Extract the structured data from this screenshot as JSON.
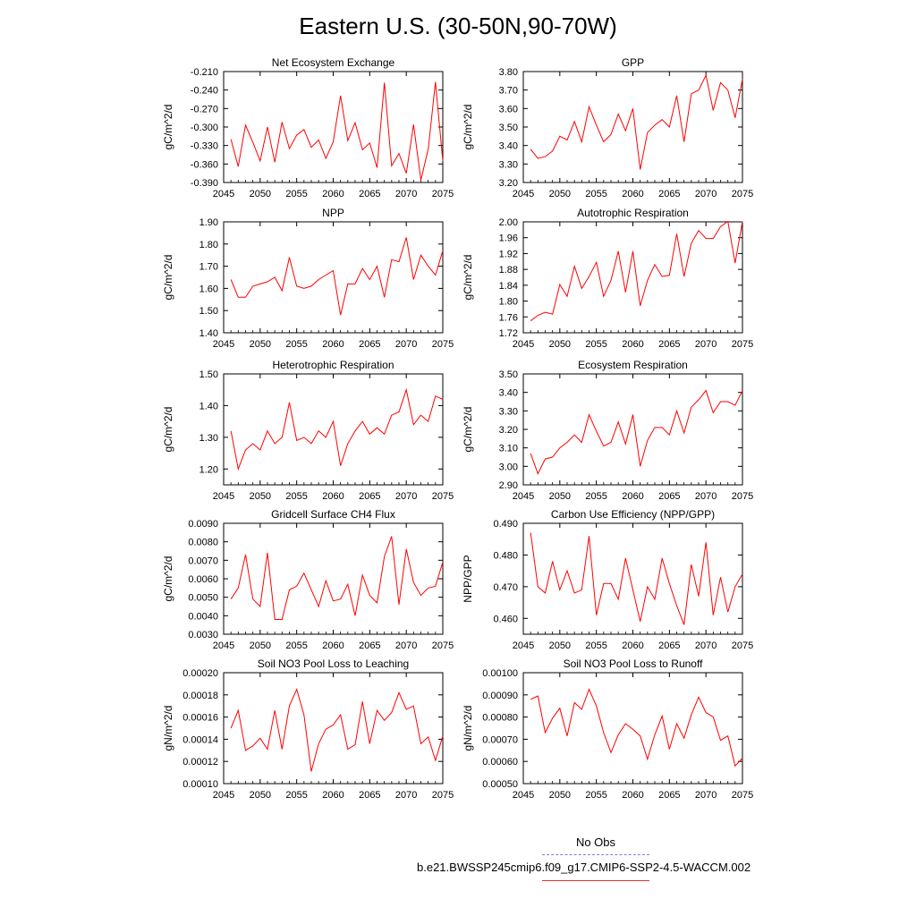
{
  "title": "Eastern U.S. (30-50N,90-70W)",
  "legend": {
    "entries": [
      {
        "label": "No Obs",
        "color": "#7b7bd6",
        "style": "dashed"
      },
      {
        "label": "b.e21.BWSSP245cmip6.f09_g17.CMIP6-SSP2-4.5-WACCM.002",
        "color": "#e03030",
        "style": "solid"
      }
    ]
  },
  "series_color": "#ff0000",
  "chart_data": [
    {
      "type": "line",
      "title": "Net Ecosystem Exchange",
      "ylabel": "gC/m^2/d",
      "xlabel": "",
      "xlim": [
        2045,
        2075
      ],
      "ylim": [
        -0.39,
        -0.21
      ],
      "xticks": [
        "2045",
        "2050",
        "2055",
        "2060",
        "2065",
        "2070",
        "2075"
      ],
      "yticks": [
        "-0.210",
        "-0.240",
        "-0.270",
        "-0.300",
        "-0.330",
        "-0.360",
        "-0.390"
      ],
      "x": [
        2046,
        2047,
        2048,
        2049,
        2050,
        2051,
        2052,
        2053,
        2054,
        2055,
        2056,
        2057,
        2058,
        2059,
        2060,
        2061,
        2062,
        2063,
        2064,
        2065,
        2066,
        2067,
        2068,
        2069,
        2070,
        2071,
        2072,
        2073,
        2074,
        2075
      ],
      "series": [
        {
          "values": [
            -0.32,
            -0.364,
            -0.297,
            -0.325,
            -0.355,
            -0.3,
            -0.357,
            -0.292,
            -0.335,
            -0.313,
            -0.304,
            -0.333,
            -0.321,
            -0.351,
            -0.324,
            -0.249,
            -0.322,
            -0.293,
            -0.337,
            -0.326,
            -0.366,
            -0.228,
            -0.363,
            -0.343,
            -0.375,
            -0.296,
            -0.386,
            -0.336,
            -0.227,
            -0.355
          ]
        }
      ]
    },
    {
      "type": "line",
      "title": "GPP",
      "ylabel": "gC/m^2/d",
      "xlabel": "",
      "xlim": [
        2045,
        2075
      ],
      "ylim": [
        3.2,
        3.8
      ],
      "xticks": [
        "2045",
        "2050",
        "2055",
        "2060",
        "2065",
        "2070",
        "2075"
      ],
      "yticks": [
        "3.80",
        "3.70",
        "3.60",
        "3.50",
        "3.40",
        "3.30",
        "3.20"
      ],
      "x": [
        2046,
        2047,
        2048,
        2049,
        2050,
        2051,
        2052,
        2053,
        2054,
        2055,
        2056,
        2057,
        2058,
        2059,
        2060,
        2061,
        2062,
        2063,
        2064,
        2065,
        2066,
        2067,
        2068,
        2069,
        2070,
        2071,
        2072,
        2073,
        2074,
        2075
      ],
      "series": [
        {
          "values": [
            3.38,
            3.33,
            3.34,
            3.37,
            3.45,
            3.43,
            3.53,
            3.42,
            3.61,
            3.51,
            3.42,
            3.46,
            3.57,
            3.48,
            3.6,
            3.27,
            3.47,
            3.51,
            3.54,
            3.5,
            3.67,
            3.42,
            3.68,
            3.7,
            3.78,
            3.59,
            3.74,
            3.7,
            3.55,
            3.76
          ]
        }
      ]
    },
    {
      "type": "line",
      "title": "NPP",
      "ylabel": "gC/m^2/d",
      "xlabel": "",
      "xlim": [
        2045,
        2075
      ],
      "ylim": [
        1.4,
        1.9
      ],
      "xticks": [
        "2045",
        "2050",
        "2055",
        "2060",
        "2065",
        "2070",
        "2075"
      ],
      "yticks": [
        "1.90",
        "1.80",
        "1.70",
        "1.60",
        "1.50",
        "1.40"
      ],
      "x": [
        2046,
        2047,
        2048,
        2049,
        2050,
        2051,
        2052,
        2053,
        2054,
        2055,
        2056,
        2057,
        2058,
        2059,
        2060,
        2061,
        2062,
        2063,
        2064,
        2065,
        2066,
        2067,
        2068,
        2069,
        2070,
        2071,
        2072,
        2073,
        2074,
        2075
      ],
      "series": [
        {
          "values": [
            1.64,
            1.56,
            1.56,
            1.61,
            1.62,
            1.63,
            1.65,
            1.59,
            1.74,
            1.61,
            1.6,
            1.61,
            1.64,
            1.66,
            1.68,
            1.48,
            1.62,
            1.62,
            1.69,
            1.64,
            1.7,
            1.56,
            1.73,
            1.72,
            1.83,
            1.64,
            1.75,
            1.7,
            1.66,
            1.77
          ]
        }
      ]
    },
    {
      "type": "line",
      "title": "Autotrophic Respiration",
      "ylabel": "gC/m^2/d",
      "xlabel": "",
      "xlim": [
        2045,
        2075
      ],
      "ylim": [
        1.72,
        2.0
      ],
      "xticks": [
        "2045",
        "2050",
        "2055",
        "2060",
        "2065",
        "2070",
        "2075"
      ],
      "yticks": [
        "2.00",
        "1.96",
        "1.92",
        "1.88",
        "1.84",
        "1.80",
        "1.76",
        "1.72"
      ],
      "x": [
        2046,
        2047,
        2048,
        2049,
        2050,
        2051,
        2052,
        2053,
        2054,
        2055,
        2056,
        2057,
        2058,
        2059,
        2060,
        2061,
        2062,
        2063,
        2064,
        2065,
        2066,
        2067,
        2068,
        2069,
        2070,
        2071,
        2072,
        2073,
        2074,
        2075
      ],
      "series": [
        {
          "values": [
            1.75,
            1.764,
            1.772,
            1.767,
            1.842,
            1.812,
            1.888,
            1.832,
            1.862,
            1.898,
            1.812,
            1.852,
            1.926,
            1.822,
            1.926,
            1.788,
            1.852,
            1.892,
            1.862,
            1.865,
            1.97,
            1.862,
            1.946,
            1.978,
            1.958,
            1.958,
            1.988,
            2.001,
            1.896,
            2.001
          ]
        }
      ]
    },
    {
      "type": "line",
      "title": "Heterotrophic Respiration",
      "ylabel": "gC/m^2/d",
      "xlabel": "",
      "xlim": [
        2045,
        2075
      ],
      "ylim": [
        1.15,
        1.5
      ],
      "xticks": [
        "2045",
        "2050",
        "2055",
        "2060",
        "2065",
        "2070",
        "2075"
      ],
      "yticks": [
        "1.50",
        "1.40",
        "1.30",
        "1.20"
      ],
      "x": [
        2046,
        2047,
        2048,
        2049,
        2050,
        2051,
        2052,
        2053,
        2054,
        2055,
        2056,
        2057,
        2058,
        2059,
        2060,
        2061,
        2062,
        2063,
        2064,
        2065,
        2066,
        2067,
        2068,
        2069,
        2070,
        2071,
        2072,
        2073,
        2074,
        2075
      ],
      "series": [
        {
          "values": [
            1.32,
            1.2,
            1.26,
            1.28,
            1.26,
            1.32,
            1.28,
            1.3,
            1.41,
            1.29,
            1.3,
            1.28,
            1.32,
            1.3,
            1.35,
            1.21,
            1.28,
            1.32,
            1.35,
            1.31,
            1.33,
            1.31,
            1.37,
            1.38,
            1.45,
            1.34,
            1.37,
            1.35,
            1.43,
            1.42
          ]
        }
      ]
    },
    {
      "type": "line",
      "title": "Ecosystem Respiration",
      "ylabel": "gC/m^2/d",
      "xlabel": "",
      "xlim": [
        2045,
        2075
      ],
      "ylim": [
        2.9,
        3.5
      ],
      "xticks": [
        "2045",
        "2050",
        "2055",
        "2060",
        "2065",
        "2070",
        "2075"
      ],
      "yticks": [
        "3.50",
        "3.40",
        "3.30",
        "3.20",
        "3.10",
        "3.00",
        "2.90"
      ],
      "x": [
        2046,
        2047,
        2048,
        2049,
        2050,
        2051,
        2052,
        2053,
        2054,
        2055,
        2056,
        2057,
        2058,
        2059,
        2060,
        2061,
        2062,
        2063,
        2064,
        2065,
        2066,
        2067,
        2068,
        2069,
        2070,
        2071,
        2072,
        2073,
        2074,
        2075
      ],
      "series": [
        {
          "values": [
            3.07,
            2.96,
            3.04,
            3.05,
            3.1,
            3.13,
            3.17,
            3.13,
            3.28,
            3.19,
            3.11,
            3.13,
            3.24,
            3.12,
            3.28,
            3.0,
            3.14,
            3.21,
            3.21,
            3.17,
            3.3,
            3.18,
            3.32,
            3.36,
            3.41,
            3.29,
            3.35,
            3.35,
            3.33,
            3.41
          ]
        }
      ]
    },
    {
      "type": "line",
      "title": "Gridcell Surface CH4 Flux",
      "ylabel": "gC/m^2/d",
      "xlabel": "",
      "xlim": [
        2045,
        2075
      ],
      "ylim": [
        0.003,
        0.009
      ],
      "xticks": [
        "2045",
        "2050",
        "2055",
        "2060",
        "2065",
        "2070",
        "2075"
      ],
      "yticks": [
        "0.0090",
        "0.0080",
        "0.0070",
        "0.0060",
        "0.0050",
        "0.0040",
        "0.0030"
      ],
      "x": [
        2046,
        2047,
        2048,
        2049,
        2050,
        2051,
        2052,
        2053,
        2054,
        2055,
        2056,
        2057,
        2058,
        2059,
        2060,
        2061,
        2062,
        2063,
        2064,
        2065,
        2066,
        2067,
        2068,
        2069,
        2070,
        2071,
        2072,
        2073,
        2074,
        2075
      ],
      "series": [
        {
          "values": [
            0.0049,
            0.0055,
            0.0073,
            0.0049,
            0.0045,
            0.0074,
            0.0038,
            0.0038,
            0.0054,
            0.0056,
            0.0063,
            0.0054,
            0.0045,
            0.0059,
            0.0048,
            0.0049,
            0.0057,
            0.004,
            0.0062,
            0.0051,
            0.0047,
            0.0072,
            0.0083,
            0.0046,
            0.0076,
            0.0058,
            0.0051,
            0.0055,
            0.0056,
            0.0069
          ]
        }
      ]
    },
    {
      "type": "line",
      "title": "Carbon Use Efficiency (NPP/GPP)",
      "ylabel": "NPP/GPP",
      "xlabel": "",
      "xlim": [
        2045,
        2075
      ],
      "ylim": [
        0.455,
        0.49
      ],
      "xticks": [
        "2045",
        "2050",
        "2055",
        "2060",
        "2065",
        "2070",
        "2075"
      ],
      "yticks": [
        "0.490",
        "0.480",
        "0.470",
        "0.460"
      ],
      "x": [
        2046,
        2047,
        2048,
        2049,
        2050,
        2051,
        2052,
        2053,
        2054,
        2055,
        2056,
        2057,
        2058,
        2059,
        2060,
        2061,
        2062,
        2063,
        2064,
        2065,
        2066,
        2067,
        2068,
        2069,
        2070,
        2071,
        2072,
        2073,
        2074,
        2075
      ],
      "series": [
        {
          "values": [
            0.487,
            0.47,
            0.468,
            0.478,
            0.469,
            0.475,
            0.468,
            0.469,
            0.486,
            0.461,
            0.471,
            0.471,
            0.466,
            0.479,
            0.469,
            0.459,
            0.47,
            0.466,
            0.479,
            0.471,
            0.464,
            0.458,
            0.477,
            0.467,
            0.484,
            0.461,
            0.473,
            0.462,
            0.47,
            0.474
          ]
        }
      ]
    },
    {
      "type": "line",
      "title": "Soil NO3 Pool Loss to Leaching",
      "ylabel": "gN/m^2/d",
      "xlabel": "",
      "xlim": [
        2045,
        2075
      ],
      "ylim": [
        0.0001,
        0.0002
      ],
      "xticks": [
        "2045",
        "2050",
        "2055",
        "2060",
        "2065",
        "2070",
        "2075"
      ],
      "yticks": [
        "0.00020",
        "0.00018",
        "0.00016",
        "0.00014",
        "0.00012",
        "0.00010"
      ],
      "x": [
        2046,
        2047,
        2048,
        2049,
        2050,
        2051,
        2052,
        2053,
        2054,
        2055,
        2056,
        2057,
        2058,
        2059,
        2060,
        2061,
        2062,
        2063,
        2064,
        2065,
        2066,
        2067,
        2068,
        2069,
        2070,
        2071,
        2072,
        2073,
        2074,
        2075
      ],
      "series": [
        {
          "values": [
            0.00015,
            0.000166,
            0.00013,
            0.000134,
            0.000141,
            0.000131,
            0.000166,
            0.000131,
            0.00017,
            0.000185,
            0.000162,
            0.000111,
            0.000136,
            0.000149,
            0.000153,
            0.000162,
            0.000131,
            0.000135,
            0.000174,
            0.000136,
            0.000166,
            0.000157,
            0.000164,
            0.000182,
            0.000167,
            0.00017,
            0.000136,
            0.000142,
            0.000121,
            0.000143
          ]
        }
      ]
    },
    {
      "type": "line",
      "title": "Soil NO3 Pool Loss to Runoff",
      "ylabel": "gN/m^2/d",
      "xlabel": "",
      "xlim": [
        2045,
        2075
      ],
      "ylim": [
        0.0005,
        0.001
      ],
      "xticks": [
        "2045",
        "2050",
        "2055",
        "2060",
        "2065",
        "2070",
        "2075"
      ],
      "yticks": [
        "0.00100",
        "0.00090",
        "0.00080",
        "0.00070",
        "0.00060",
        "0.00050"
      ],
      "x": [
        2046,
        2047,
        2048,
        2049,
        2050,
        2051,
        2052,
        2053,
        2054,
        2055,
        2056,
        2057,
        2058,
        2059,
        2060,
        2061,
        2062,
        2063,
        2064,
        2065,
        2066,
        2067,
        2068,
        2069,
        2070,
        2071,
        2072,
        2073,
        2074,
        2075
      ],
      "series": [
        {
          "values": [
            0.00088,
            0.000895,
            0.00073,
            0.000795,
            0.00084,
            0.000715,
            0.000865,
            0.000835,
            0.000925,
            0.00085,
            0.00073,
            0.00064,
            0.00072,
            0.00077,
            0.000745,
            0.000715,
            0.00061,
            0.00072,
            0.000805,
            0.000655,
            0.00077,
            0.000705,
            0.00081,
            0.00089,
            0.00082,
            0.0008,
            0.000695,
            0.000715,
            0.00058,
            0.000615
          ]
        }
      ]
    }
  ]
}
